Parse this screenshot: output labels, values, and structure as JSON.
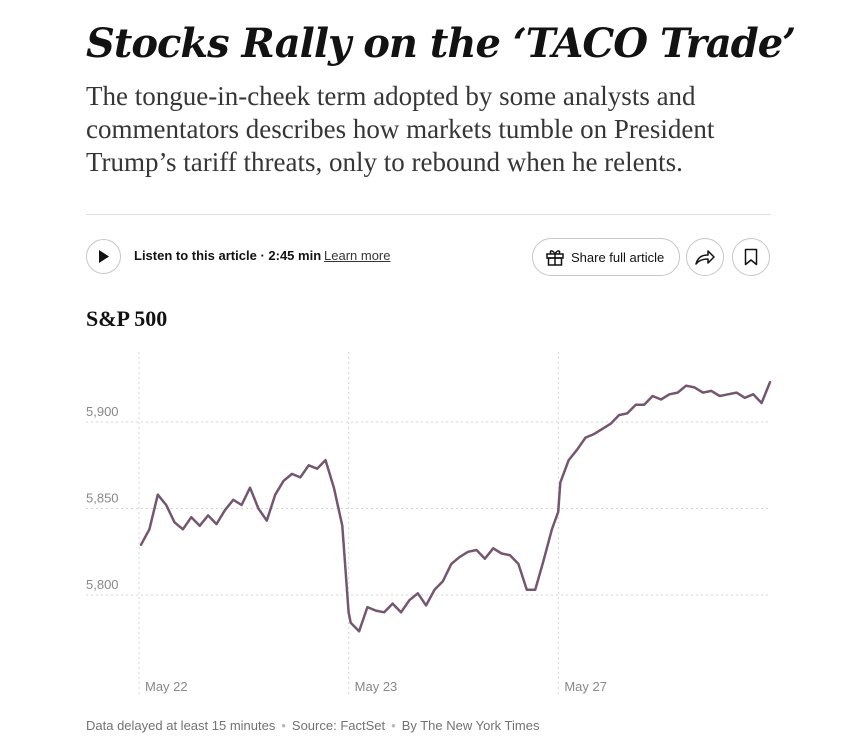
{
  "article": {
    "headline": "Stocks Rally on the ‘TACO Trade’",
    "summary": "The tongue-in-cheek term adopted by some analysts and commentators describes how markets tumble on President Trump’s tariff threats, only to rebound when he relents."
  },
  "toolbar": {
    "listen_label": "Listen to this article",
    "duration": "2:45 min",
    "learn_more": "Learn more",
    "share_label": "Share full article"
  },
  "chart_data": {
    "type": "line",
    "title": "S&P 500",
    "xlabel": "",
    "ylabel": "",
    "ylim": [
      5775,
      5925
    ],
    "xlim": [
      0,
      30
    ],
    "y_ticks": [
      {
        "value": 5900,
        "label": "5,900"
      },
      {
        "value": 5850,
        "label": "5,850"
      },
      {
        "value": 5800,
        "label": "5,800"
      }
    ],
    "x_ticks": [
      {
        "value": 0,
        "label": "May 22"
      },
      {
        "value": 10,
        "label": "May 23"
      },
      {
        "value": 20,
        "label": "May 27"
      }
    ],
    "series": [
      {
        "name": "S&P 500",
        "color": "#74576f",
        "x": [
          0,
          0.4,
          0.8,
          1.2,
          1.6,
          2.0,
          2.4,
          2.8,
          3.2,
          3.6,
          4.0,
          4.4,
          4.8,
          5.2,
          5.6,
          6.0,
          6.4,
          6.8,
          7.2,
          7.6,
          8.0,
          8.4,
          8.8,
          9.2,
          9.6,
          9.9,
          10.0,
          10.4,
          10.8,
          11.2,
          11.6,
          12.0,
          12.4,
          12.8,
          13.2,
          13.6,
          14.0,
          14.4,
          14.8,
          15.2,
          15.6,
          16.0,
          16.4,
          16.8,
          17.2,
          17.6,
          18.0,
          18.4,
          18.8,
          19.2,
          19.6,
          19.9,
          20.0,
          20.4,
          20.8,
          21.2,
          21.6,
          22.0,
          22.4,
          22.8,
          23.2,
          23.6,
          24.0,
          24.4,
          24.8,
          25.2,
          25.6,
          26.0,
          26.4,
          26.8,
          27.2,
          27.6,
          28.0,
          28.4,
          28.8,
          29.2,
          29.6,
          30.0
        ],
        "values": [
          5829,
          5838,
          5858,
          5852,
          5842,
          5838,
          5845,
          5840,
          5846,
          5841,
          5849,
          5855,
          5852,
          5862,
          5850,
          5843,
          5858,
          5866,
          5870,
          5868,
          5875,
          5873,
          5878,
          5862,
          5840,
          5790,
          5784,
          5779,
          5793,
          5791,
          5790,
          5795,
          5790,
          5797,
          5801,
          5794,
          5803,
          5808,
          5818,
          5822,
          5825,
          5826,
          5821,
          5827,
          5824,
          5823,
          5818,
          5803,
          5803,
          5820,
          5838,
          5848,
          5865,
          5878,
          5884,
          5891,
          5893,
          5896,
          5899,
          5904,
          5905,
          5910,
          5910,
          5915,
          5913,
          5916,
          5917,
          5921,
          5920,
          5917,
          5918,
          5915,
          5916,
          5917,
          5914,
          5916,
          5911,
          5923
        ]
      }
    ]
  },
  "footer": {
    "delay": "Data delayed at least 15 minutes",
    "source": "Source: FactSet",
    "credit": "By The New York Times"
  }
}
